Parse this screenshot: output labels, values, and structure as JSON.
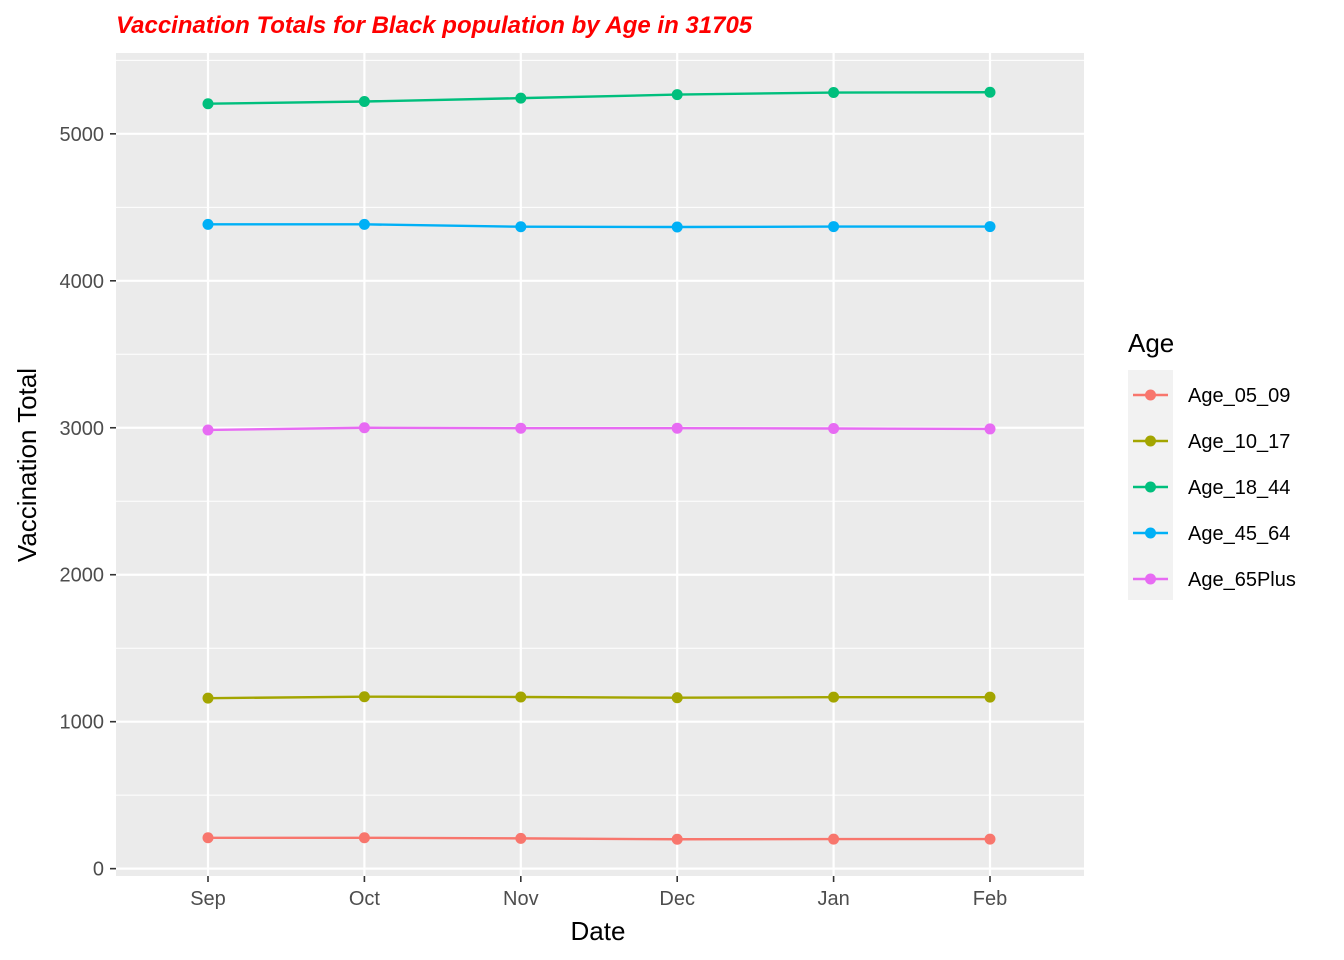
{
  "chart_data": {
    "type": "line",
    "title": "Vaccination Totals for Black population by Age in 31705",
    "xlabel": "Date",
    "ylabel": "Vaccination Total",
    "categories": [
      "Sep",
      "Oct",
      "Nov",
      "Dec",
      "Jan",
      "Feb"
    ],
    "ylim": [
      -50,
      5550
    ],
    "yticks": [
      0,
      1000,
      2000,
      3000,
      4000,
      5000
    ],
    "ytick_labels": [
      "0",
      "1000",
      "2000",
      "3000",
      "4000",
      "5000"
    ],
    "grid": true,
    "legend": {
      "title": "Age",
      "position": "right"
    },
    "series": [
      {
        "name": "Age_05_09",
        "color": "#F8766D",
        "values": [
          210,
          210,
          206,
          200,
          201,
          201
        ]
      },
      {
        "name": "Age_10_17",
        "color": "#A3A500",
        "values": [
          1160,
          1170,
          1168,
          1163,
          1167,
          1167
        ]
      },
      {
        "name": "Age_18_44",
        "color": "#00BF7D",
        "values": [
          5205,
          5220,
          5243,
          5267,
          5281,
          5283
        ]
      },
      {
        "name": "Age_45_64",
        "color": "#00B0F6",
        "values": [
          4384,
          4384,
          4368,
          4366,
          4369,
          4369
        ]
      },
      {
        "name": "Age_65Plus",
        "color": "#E76BF3",
        "values": [
          2985,
          3000,
          2997,
          2997,
          2995,
          2992
        ]
      }
    ]
  }
}
